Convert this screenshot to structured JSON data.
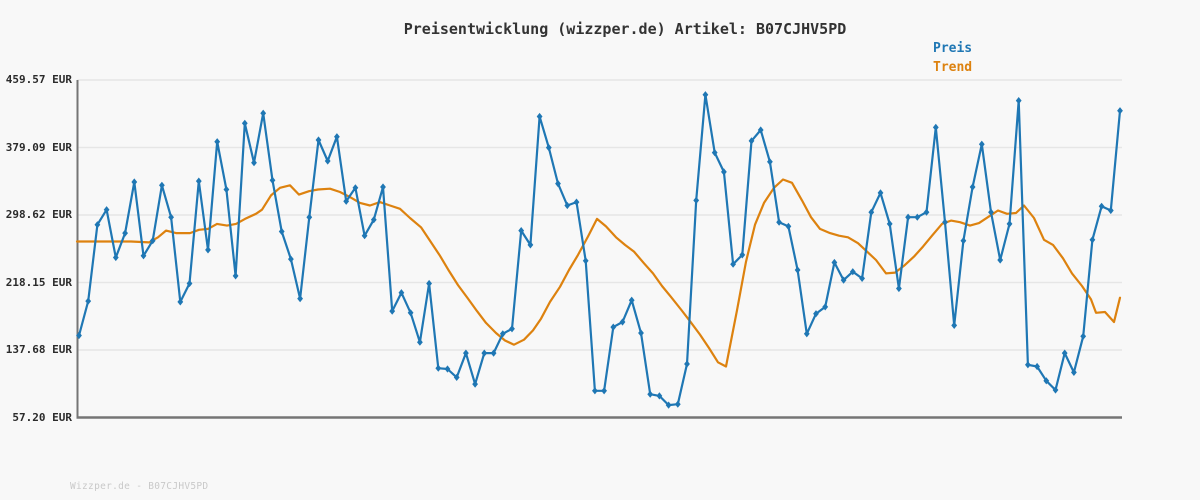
{
  "title": "Preisentwicklung (wizzper.de) Artikel: B07CJHV5PD",
  "legend": {
    "preis_label": "Preis",
    "trend_label": "Trend"
  },
  "footer": "Wizzper.de - B07CJHV5PD",
  "colors": {
    "preis": "#1f77b4",
    "trend": "#dd820f",
    "grid": "#e6e6e6",
    "spine": "#757575",
    "background": "#f8f8f8",
    "title_text": "#333333",
    "axis_text": "#2b2b2b",
    "footer_text": "#c9c9c9"
  },
  "y_axis": {
    "labels": [
      "459.57 EUR",
      "379.09 EUR",
      "298.62 EUR",
      "218.15 EUR",
      "137.68 EUR",
      "57.20 EUR"
    ],
    "values": [
      459.57,
      379.09,
      298.62,
      218.15,
      137.68,
      57.2
    ]
  },
  "chart_data": {
    "type": "line",
    "title": "Preisentwicklung (wizzper.de) Artikel: B07CJHV5PD",
    "xlabel": "",
    "ylabel": "EUR",
    "ylim": [
      57.2,
      459.57
    ],
    "y_ticks": [
      459.57,
      379.09,
      298.62,
      218.15,
      137.68,
      57.2
    ],
    "grid": "horizontal",
    "legend_position": "top-right",
    "x_tick_labels_visible": false,
    "series": [
      {
        "name": "Preis",
        "color": "#1f77b4",
        "marker": "diamond",
        "values": [
          155,
          196,
          287,
          305,
          248,
          277,
          338,
          250,
          268,
          334,
          296,
          195,
          217,
          339,
          257,
          386,
          329,
          226,
          408,
          361,
          420,
          340,
          279,
          246,
          199,
          296,
          388,
          363,
          392,
          315,
          331,
          274,
          293,
          332,
          184,
          206,
          182,
          147,
          217,
          116,
          115,
          105,
          134,
          97,
          134,
          134,
          157,
          163,
          280,
          263,
          416,
          379,
          336,
          310,
          314,
          244,
          89,
          89,
          165,
          171,
          197,
          158,
          85,
          83,
          72,
          73,
          121,
          316,
          442,
          373,
          350,
          240,
          251,
          387,
          400,
          362,
          290,
          285,
          233,
          157,
          181,
          189,
          242,
          221,
          231,
          223,
          302,
          325,
          288,
          211,
          296,
          296,
          302,
          403,
          290,
          167,
          268,
          332,
          383,
          302,
          245,
          288,
          435,
          120,
          118,
          101,
          90,
          134,
          111,
          154,
          269,
          309,
          304,
          423
        ]
      },
      {
        "name": "Trend",
        "color": "#dd820f",
        "marker": "none",
        "points": [
          [
            77,
            267
          ],
          [
            95,
            267
          ],
          [
            113,
            267
          ],
          [
            131,
            267
          ],
          [
            149,
            266
          ],
          [
            158,
            272
          ],
          [
            166,
            280
          ],
          [
            176,
            277
          ],
          [
            190,
            277
          ],
          [
            199,
            281
          ],
          [
            208,
            282
          ],
          [
            217,
            288
          ],
          [
            227,
            286
          ],
          [
            236,
            288
          ],
          [
            245,
            294
          ],
          [
            256,
            300
          ],
          [
            262,
            305
          ],
          [
            271,
            322
          ],
          [
            280,
            331
          ],
          [
            290,
            334
          ],
          [
            299,
            323
          ],
          [
            309,
            327
          ],
          [
            318,
            329
          ],
          [
            330,
            330
          ],
          [
            340,
            326
          ],
          [
            350,
            320
          ],
          [
            360,
            313
          ],
          [
            370,
            310
          ],
          [
            380,
            314
          ],
          [
            390,
            310
          ],
          [
            400,
            306
          ],
          [
            410,
            295
          ],
          [
            421,
            284
          ],
          [
            430,
            268
          ],
          [
            440,
            250
          ],
          [
            449,
            232
          ],
          [
            458,
            215
          ],
          [
            468,
            199
          ],
          [
            477,
            184
          ],
          [
            486,
            170
          ],
          [
            496,
            158
          ],
          [
            505,
            149
          ],
          [
            514,
            144
          ],
          [
            524,
            150
          ],
          [
            533,
            161
          ],
          [
            541,
            175
          ],
          [
            550,
            195
          ],
          [
            560,
            213
          ],
          [
            569,
            233
          ],
          [
            578,
            251
          ],
          [
            588,
            273
          ],
          [
            597,
            294
          ],
          [
            606,
            285
          ],
          [
            616,
            272
          ],
          [
            625,
            263
          ],
          [
            634,
            255
          ],
          [
            644,
            241
          ],
          [
            653,
            229
          ],
          [
            662,
            214
          ],
          [
            671,
            201
          ],
          [
            681,
            186
          ],
          [
            690,
            172
          ],
          [
            700,
            156
          ],
          [
            709,
            140
          ],
          [
            718,
            123
          ],
          [
            726,
            118
          ],
          [
            737,
            185
          ],
          [
            746,
            243
          ],
          [
            755,
            287
          ],
          [
            764,
            313
          ],
          [
            774,
            331
          ],
          [
            783,
            341
          ],
          [
            792,
            337
          ],
          [
            802,
            316
          ],
          [
            811,
            296
          ],
          [
            820,
            282
          ],
          [
            830,
            277
          ],
          [
            839,
            274
          ],
          [
            848,
            272
          ],
          [
            858,
            265
          ],
          [
            867,
            255
          ],
          [
            876,
            245
          ],
          [
            886,
            229
          ],
          [
            895,
            230
          ],
          [
            904,
            238
          ],
          [
            914,
            249
          ],
          [
            923,
            261
          ],
          [
            932,
            274
          ],
          [
            942,
            288
          ],
          [
            951,
            292
          ],
          [
            960,
            290
          ],
          [
            970,
            286
          ],
          [
            979,
            289
          ],
          [
            989,
            297
          ],
          [
            998,
            304
          ],
          [
            1007,
            300
          ],
          [
            1016,
            301
          ],
          [
            1024,
            310
          ],
          [
            1034,
            295
          ],
          [
            1044,
            269
          ],
          [
            1053,
            263
          ],
          [
            1063,
            247
          ],
          [
            1072,
            229
          ],
          [
            1082,
            214
          ],
          [
            1091,
            198
          ],
          [
            1096,
            182
          ],
          [
            1105,
            183
          ],
          [
            1114,
            171
          ],
          [
            1120,
            200
          ]
        ]
      }
    ]
  }
}
